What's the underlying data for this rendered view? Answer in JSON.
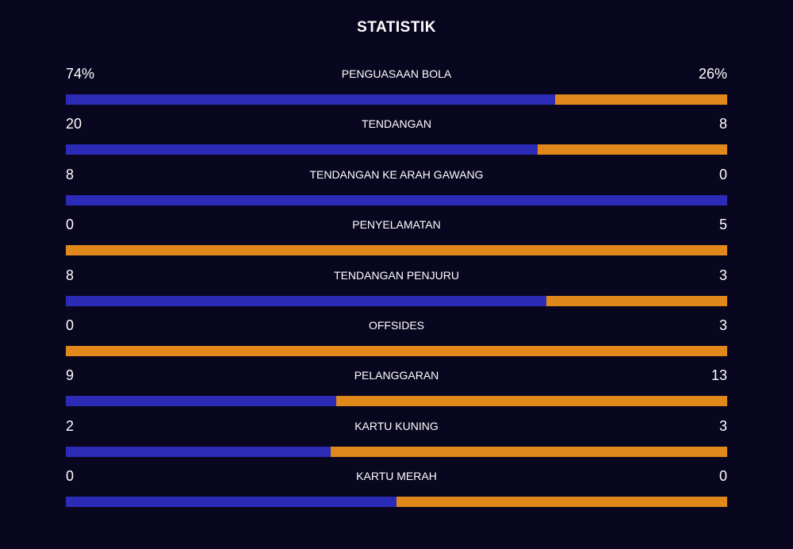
{
  "title": "STATISTIK",
  "colors": {
    "background": "#08071f",
    "home": "#2b2bb8",
    "away": "#e0881a"
  },
  "stats": [
    {
      "label": "PENGUASAAN BOLA",
      "home": "74%",
      "away": "26%",
      "home_share": 0.74
    },
    {
      "label": "TENDANGAN",
      "home": "20",
      "away": "8",
      "home_share": 0.714
    },
    {
      "label": "TENDANGAN KE ARAH GAWANG",
      "home": "8",
      "away": "0",
      "home_share": 1.0
    },
    {
      "label": "PENYELAMATAN",
      "home": "0",
      "away": "5",
      "home_share": 0.0
    },
    {
      "label": "TENDANGAN PENJURU",
      "home": "8",
      "away": "3",
      "home_share": 0.727
    },
    {
      "label": "OFFSIDES",
      "home": "0",
      "away": "3",
      "home_share": 0.0
    },
    {
      "label": "PELANGGARAN",
      "home": "9",
      "away": "13",
      "home_share": 0.409
    },
    {
      "label": "KARTU KUNING",
      "home": "2",
      "away": "3",
      "home_share": 0.4
    },
    {
      "label": "KARTU MERAH",
      "home": "0",
      "away": "0",
      "home_share": 0.5
    }
  ]
}
